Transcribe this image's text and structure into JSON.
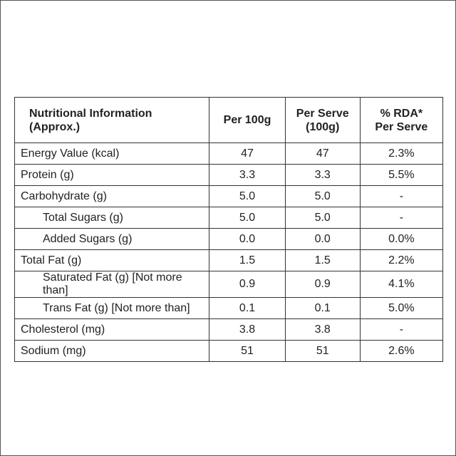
{
  "table": {
    "headers": {
      "name": "Nutritional Information (Approx.)",
      "per100": "Per 100g",
      "serve_line1": "Per Serve",
      "serve_line2": "(100g)",
      "rda_line1": "% RDA*",
      "rda_line2": "Per Serve"
    },
    "rows": [
      {
        "name": "Energy Value (kcal)",
        "per100": "47",
        "serve": "47",
        "rda": "2.3%"
      },
      {
        "name": "Protein (g)",
        "per100": "3.3",
        "serve": "3.3",
        "rda": "5.5%"
      },
      {
        "name": "Carbohydrate (g)",
        "per100": "5.0",
        "serve": "5.0",
        "rda": "-"
      },
      {
        "name": "Total Sugars (g)",
        "per100": "5.0",
        "serve": "5.0",
        "rda": "-"
      },
      {
        "name": "Added Sugars (g)",
        "per100": "0.0",
        "serve": "0.0",
        "rda": "0.0%"
      },
      {
        "name": "Total Fat (g)",
        "per100": "1.5",
        "serve": "1.5",
        "rda": "2.2%"
      },
      {
        "name": "Saturated Fat (g) [Not more than]",
        "per100": "0.9",
        "serve": "0.9",
        "rda": "4.1%"
      },
      {
        "name": "Trans Fat (g) [Not more than]",
        "per100": "0.1",
        "serve": "0.1",
        "rda": "5.0%"
      },
      {
        "name": "Cholesterol (mg)",
        "per100": "3.8",
        "serve": "3.8",
        "rda": "-"
      },
      {
        "name": "Sodium (mg)",
        "per100": "51",
        "serve": "51",
        "rda": "2.6%"
      }
    ]
  }
}
